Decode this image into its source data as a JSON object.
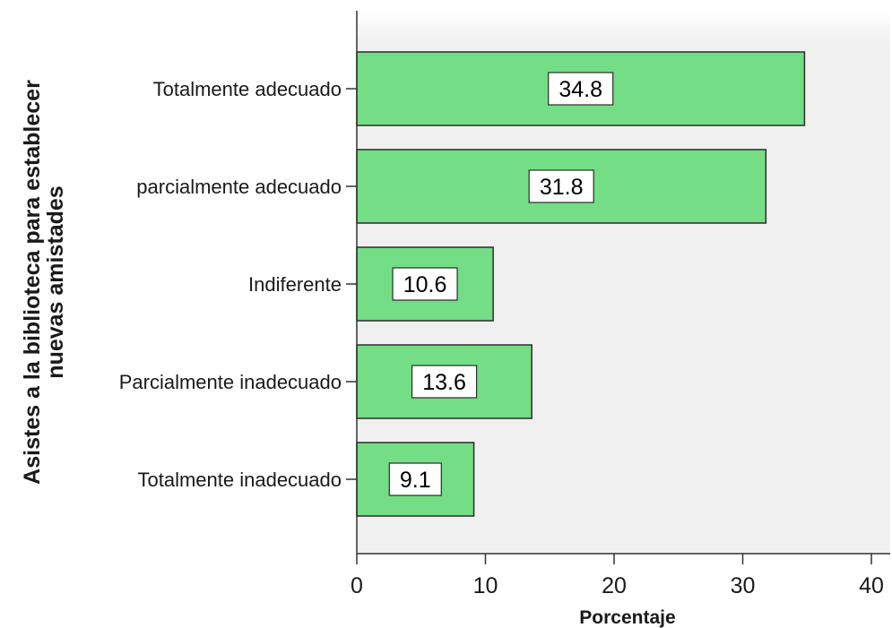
{
  "chart_data": {
    "type": "bar",
    "orientation": "horizontal",
    "categories": [
      "Totalmente adecuado",
      "parcialmente adecuado",
      "Indiferente",
      "Parcialmente inadecuado",
      "Totalmente inadecuado"
    ],
    "values": [
      34.8,
      31.8,
      10.6,
      13.6,
      9.1
    ],
    "data_labels": [
      "34.8",
      "31.8",
      "10.6",
      "13.6",
      "9.1"
    ],
    "xlabel": "Porcentaje",
    "ylabel_lines": [
      "Asistes a la biblioteca para establecer",
      "nuevas amistades"
    ],
    "xlim": [
      0,
      40
    ],
    "xticks": [
      "0",
      "10",
      "20",
      "30",
      "40"
    ],
    "grid": false,
    "bar_color": "#73de85",
    "plot_background": "#f0f0f0"
  }
}
